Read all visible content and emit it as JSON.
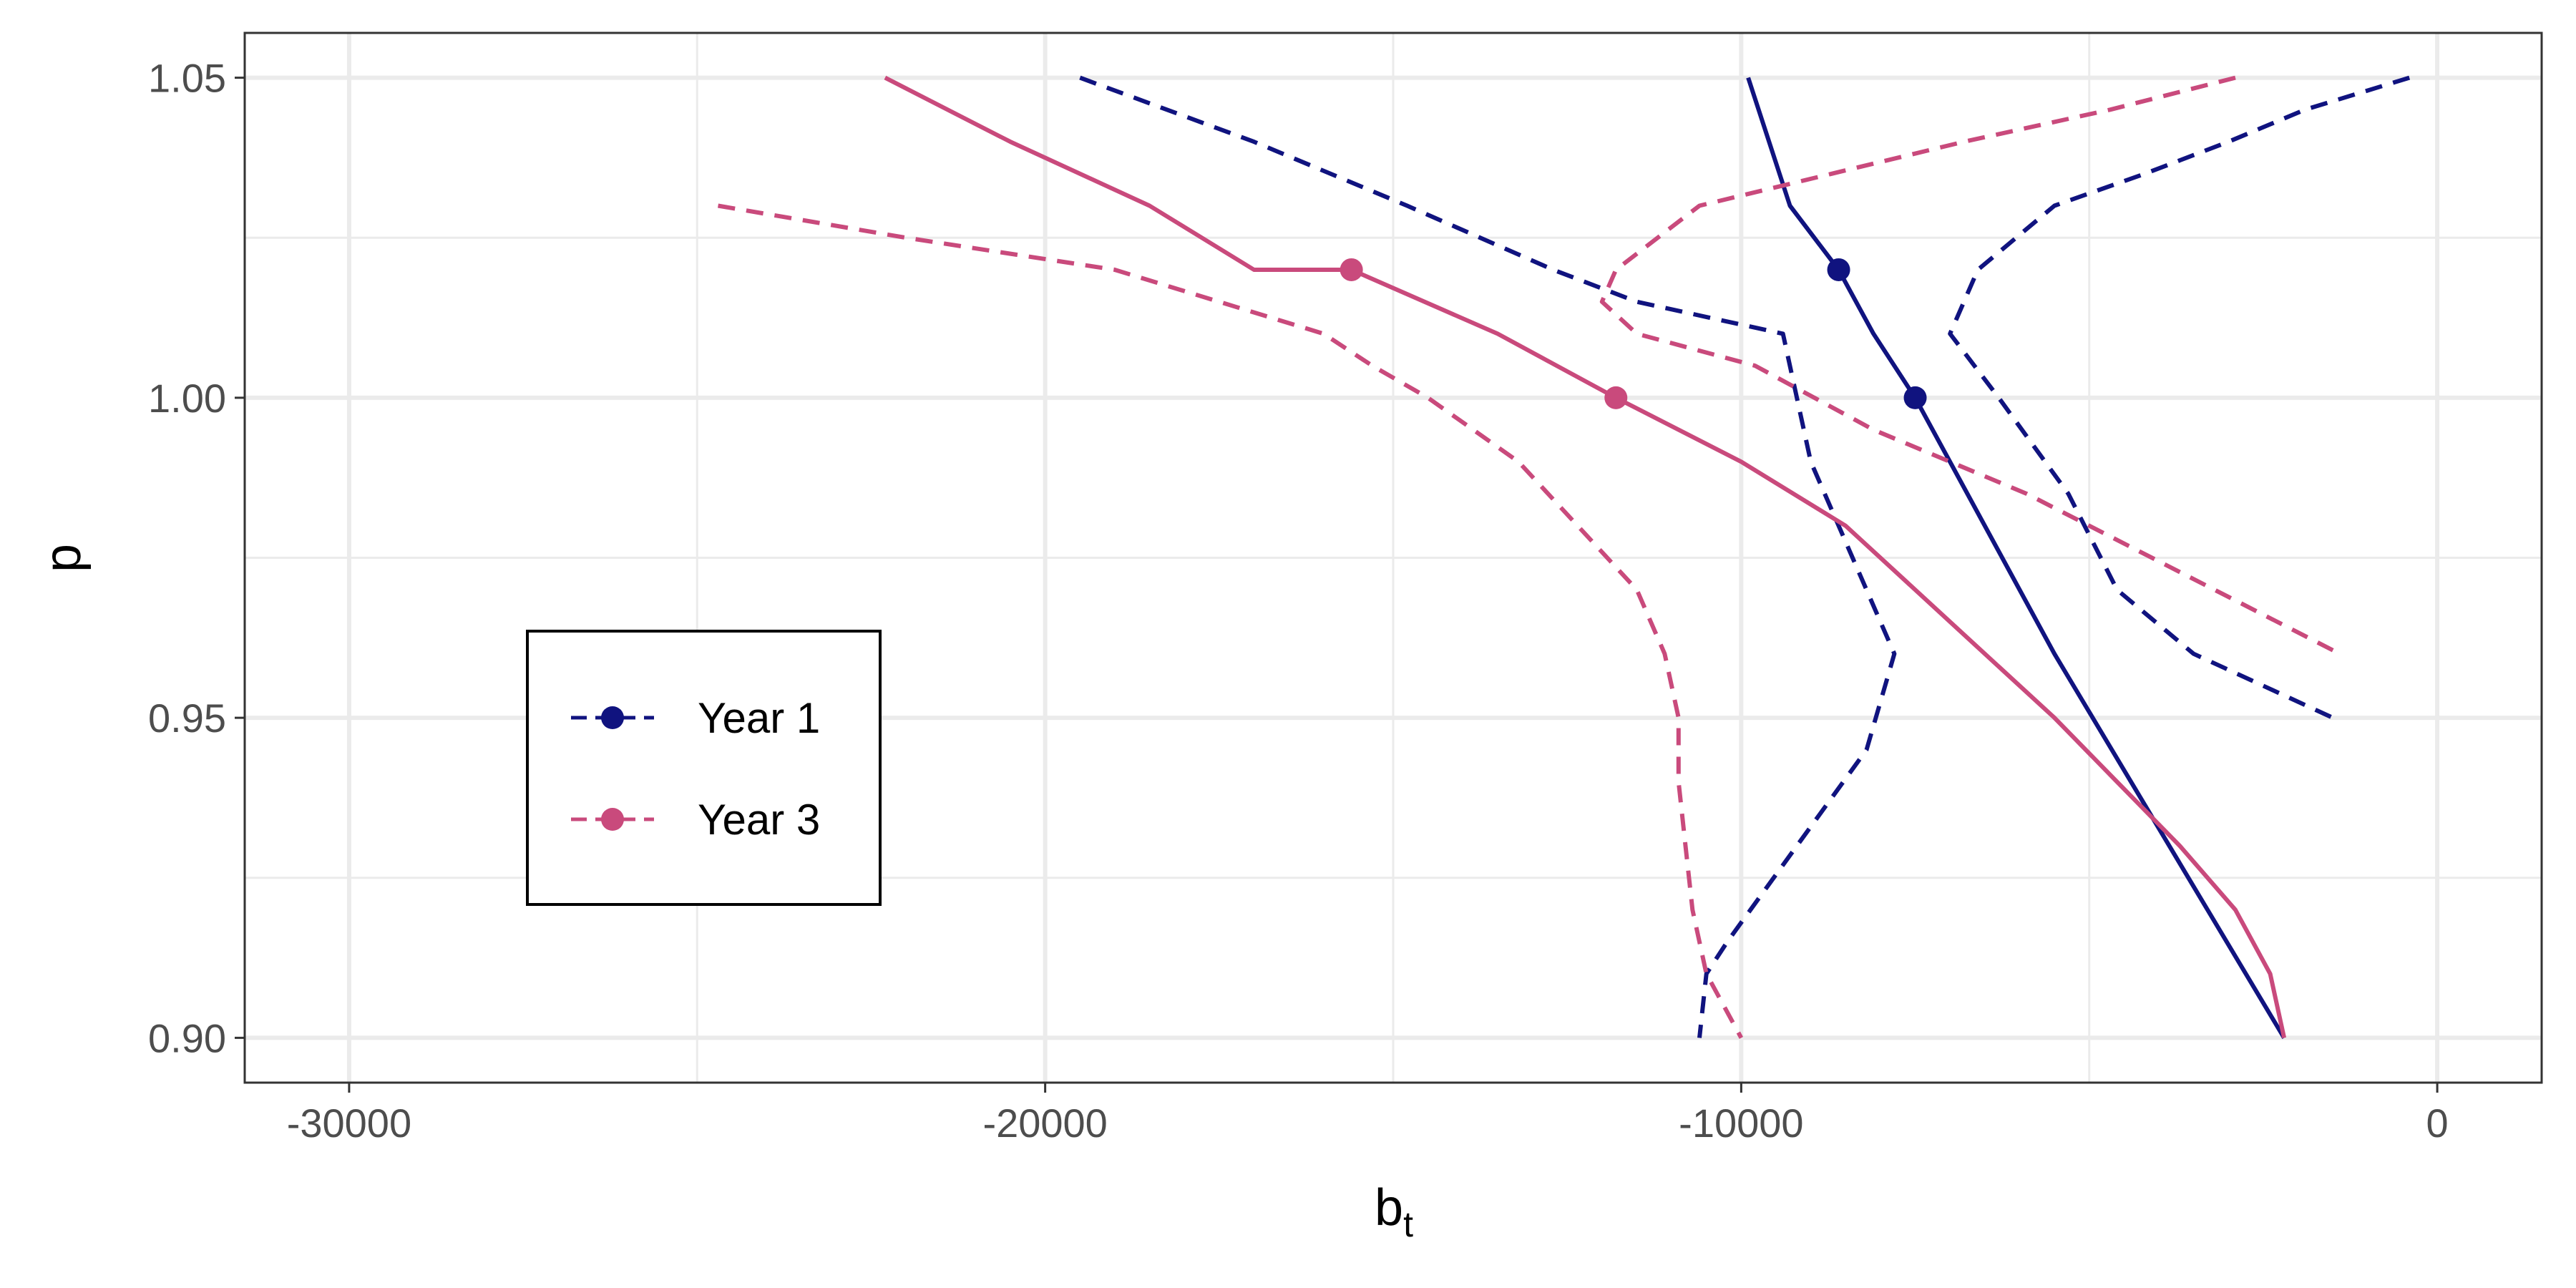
{
  "chart_data": {
    "type": "line",
    "xlabel": "b",
    "xlabel_subscript": "t",
    "ylabel": "p",
    "xlim": [
      -31500,
      1500
    ],
    "ylim": [
      0.893,
      1.057
    ],
    "x_ticks": [
      -30000,
      -20000,
      -10000,
      0
    ],
    "x_tick_labels": [
      "-30000",
      "-20000",
      "-10000",
      "0"
    ],
    "x_minor_ticks": [
      -25000,
      -15000,
      -5000
    ],
    "y_ticks": [
      0.9,
      0.95,
      1.0,
      1.05
    ],
    "y_tick_labels": [
      "0.90",
      "0.95",
      "1.00",
      "1.05"
    ],
    "y_minor_ticks": [
      0.925,
      0.975,
      1.025
    ],
    "grid": true,
    "legend_position": "left-center",
    "series": [
      {
        "name": "Year 1",
        "color": "#10137f",
        "estimate": [
          [
            -9900,
            1.05
          ],
          [
            -9300,
            1.03
          ],
          [
            -8600,
            1.02
          ],
          [
            -8100,
            1.01
          ],
          [
            -7500,
            1.0
          ],
          [
            -6500,
            0.98
          ],
          [
            -5500,
            0.96
          ],
          [
            -4400,
            0.94
          ],
          [
            -3300,
            0.92
          ],
          [
            -2200,
            0.9
          ]
        ],
        "points": [
          [
            -8600,
            1.02
          ],
          [
            -7500,
            1.0
          ]
        ],
        "bound_lower": [
          [
            -19500,
            1.05
          ],
          [
            -17000,
            1.04
          ],
          [
            -14800,
            1.03
          ],
          [
            -12700,
            1.02
          ],
          [
            -11500,
            1.015
          ],
          [
            -9400,
            1.01
          ],
          [
            -9000,
            0.99
          ],
          [
            -8400,
            0.975
          ],
          [
            -7800,
            0.96
          ],
          [
            -8200,
            0.945
          ],
          [
            -9200,
            0.93
          ],
          [
            -10200,
            0.915
          ],
          [
            -10500,
            0.91
          ],
          [
            -10600,
            0.9
          ]
        ],
        "bound_upper": [
          [
            -400,
            1.05
          ],
          [
            -1900,
            1.045
          ],
          [
            -3000,
            1.04
          ],
          [
            -4200,
            1.035
          ],
          [
            -5500,
            1.03
          ],
          [
            -6600,
            1.02
          ],
          [
            -7000,
            1.01
          ],
          [
            -6300,
            1.0
          ],
          [
            -5300,
            0.985
          ],
          [
            -4600,
            0.97
          ],
          [
            -3500,
            0.96
          ],
          [
            -1500,
            0.95
          ]
        ]
      },
      {
        "name": "Year 3",
        "color": "#c94a7c",
        "estimate": [
          [
            -22300,
            1.05
          ],
          [
            -20500,
            1.04
          ],
          [
            -18500,
            1.03
          ],
          [
            -17000,
            1.02
          ],
          [
            -15600,
            1.02
          ],
          [
            -13500,
            1.01
          ],
          [
            -11800,
            1.0
          ],
          [
            -10000,
            0.99
          ],
          [
            -8500,
            0.98
          ],
          [
            -7500,
            0.97
          ],
          [
            -6500,
            0.96
          ],
          [
            -5500,
            0.95
          ],
          [
            -4600,
            0.94
          ],
          [
            -3700,
            0.93
          ],
          [
            -2900,
            0.92
          ],
          [
            -2400,
            0.91
          ],
          [
            -2200,
            0.9
          ]
        ],
        "points": [
          [
            -15600,
            1.02
          ],
          [
            -11800,
            1.0
          ]
        ],
        "bound_lower": [
          [
            -24700,
            1.03
          ],
          [
            -22000,
            1.025
          ],
          [
            -19000,
            1.02
          ],
          [
            -16000,
            1.01
          ],
          [
            -15300,
            1.005
          ],
          [
            -14500,
            1.0
          ],
          [
            -13200,
            0.99
          ],
          [
            -11500,
            0.97
          ],
          [
            -11100,
            0.96
          ],
          [
            -10900,
            0.95
          ],
          [
            -10900,
            0.94
          ],
          [
            -10800,
            0.93
          ],
          [
            -10700,
            0.92
          ],
          [
            -10500,
            0.91
          ],
          [
            -10000,
            0.9
          ]
        ],
        "bound_upper": [
          [
            -2900,
            1.05
          ],
          [
            -4700,
            1.045
          ],
          [
            -6800,
            1.04
          ],
          [
            -8700,
            1.035
          ],
          [
            -10600,
            1.03
          ],
          [
            -11800,
            1.02
          ],
          [
            -12000,
            1.015
          ],
          [
            -11500,
            1.01
          ],
          [
            -9800,
            1.005
          ],
          [
            -8100,
            0.995
          ],
          [
            -5900,
            0.985
          ],
          [
            -3200,
            0.97
          ],
          [
            -1400,
            0.96
          ]
        ]
      }
    ]
  }
}
